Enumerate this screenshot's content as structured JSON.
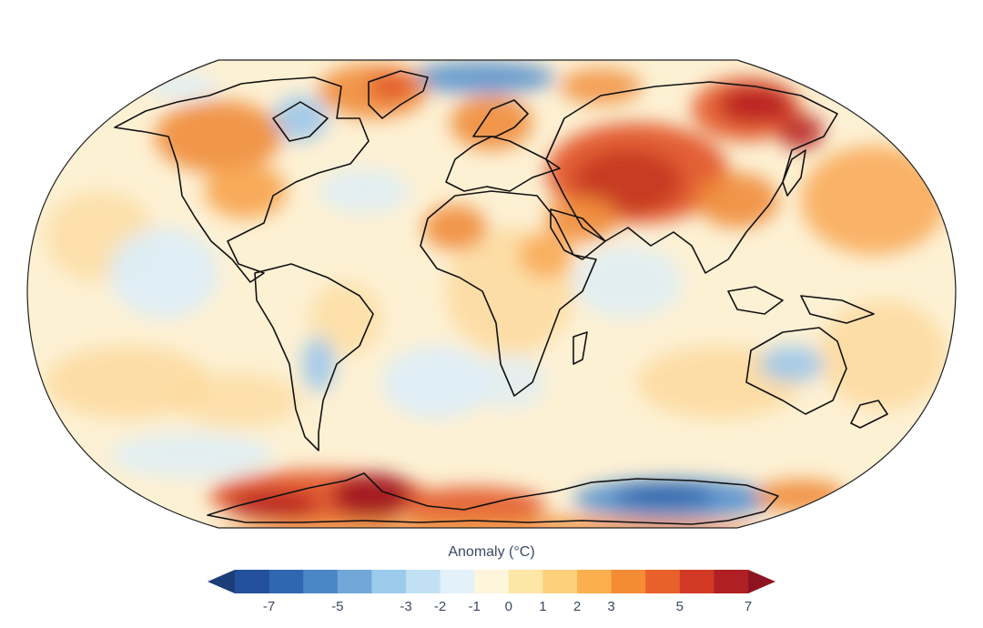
{
  "legend": {
    "title": "Anomaly (°C)",
    "ticks": [
      "-7",
      "-5",
      "-3",
      "-2",
      "-1",
      "0",
      "1",
      "2",
      "3",
      "5",
      "7"
    ],
    "colors": [
      "#1c3d7a",
      "#23509a",
      "#2f67b1",
      "#4b86c7",
      "#72a8d9",
      "#9ccbeb",
      "#c2e0f3",
      "#e3f1f9",
      "#fdf6dc",
      "#fde6a6",
      "#fdd07c",
      "#fbb04f",
      "#f48c35",
      "#e8612a",
      "#d23a26",
      "#b01f24",
      "#8c1420"
    ]
  },
  "map": {
    "projection": "Robinson (whole globe)",
    "colors": {
      "ocean_base": "#fdf1d4",
      "warm_light": "#fcd89a",
      "warm": "#f7a34e",
      "hot": "#e2562a",
      "very_hot": "#b71f22",
      "cool_light": "#dcedf8",
      "cool": "#9cc7ea",
      "cold": "#3f78c0",
      "coast": "#111111"
    }
  }
}
